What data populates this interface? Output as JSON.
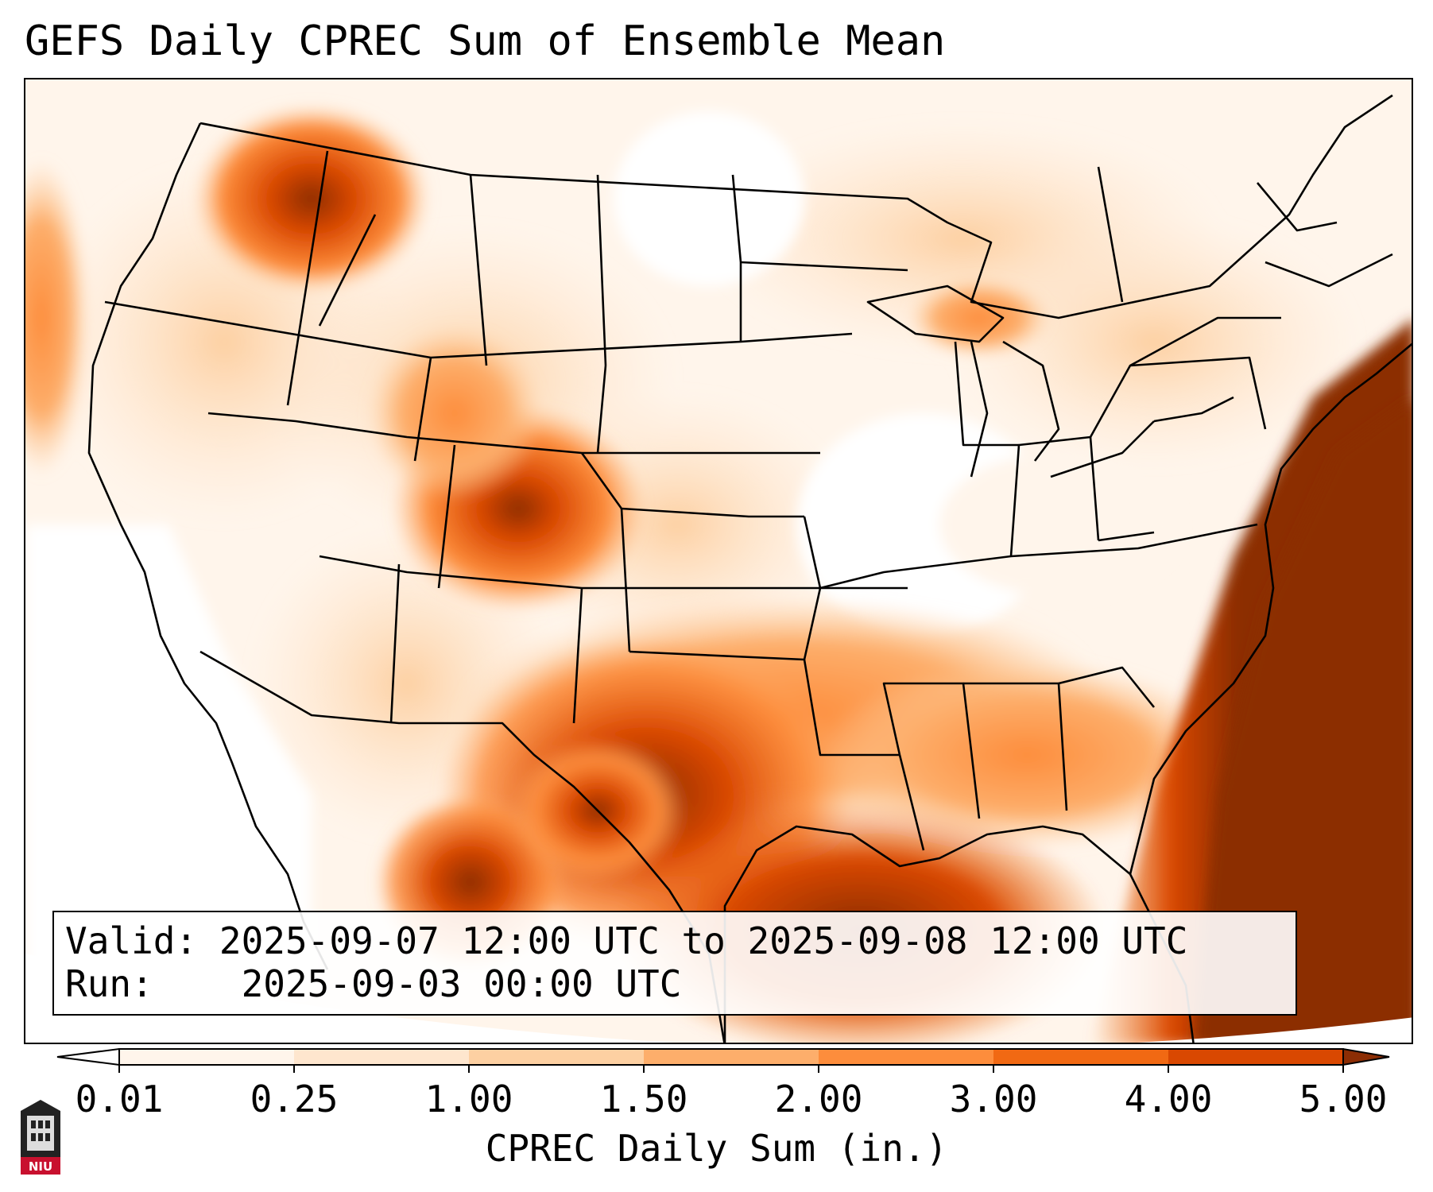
{
  "title": "GEFS Daily CPREC Sum of Ensemble Mean",
  "info": {
    "valid_label": "Valid:",
    "valid_value": "2025-09-07 12:00 UTC to 2025-09-08 12:00 UTC",
    "run_label": "Run:",
    "run_value": "2025-09-03 00:00 UTC"
  },
  "colorbar": {
    "label": "CPREC Daily Sum (in.)",
    "ticks": [
      "0.01",
      "0.25",
      "1.00",
      "1.50",
      "2.00",
      "3.00",
      "4.00",
      "5.00"
    ],
    "colors": [
      "#fff5eb",
      "#fee6ce",
      "#fdd0a2",
      "#fdae6b",
      "#fd8d3c",
      "#f16913",
      "#d94801",
      "#8c2d04"
    ],
    "under_color": "#ffffff",
    "over_color": "#8c2d04"
  },
  "map": {
    "region": "Continental United States",
    "variable": "CPREC",
    "units": "in."
  },
  "logo": {
    "text": "NIU"
  }
}
